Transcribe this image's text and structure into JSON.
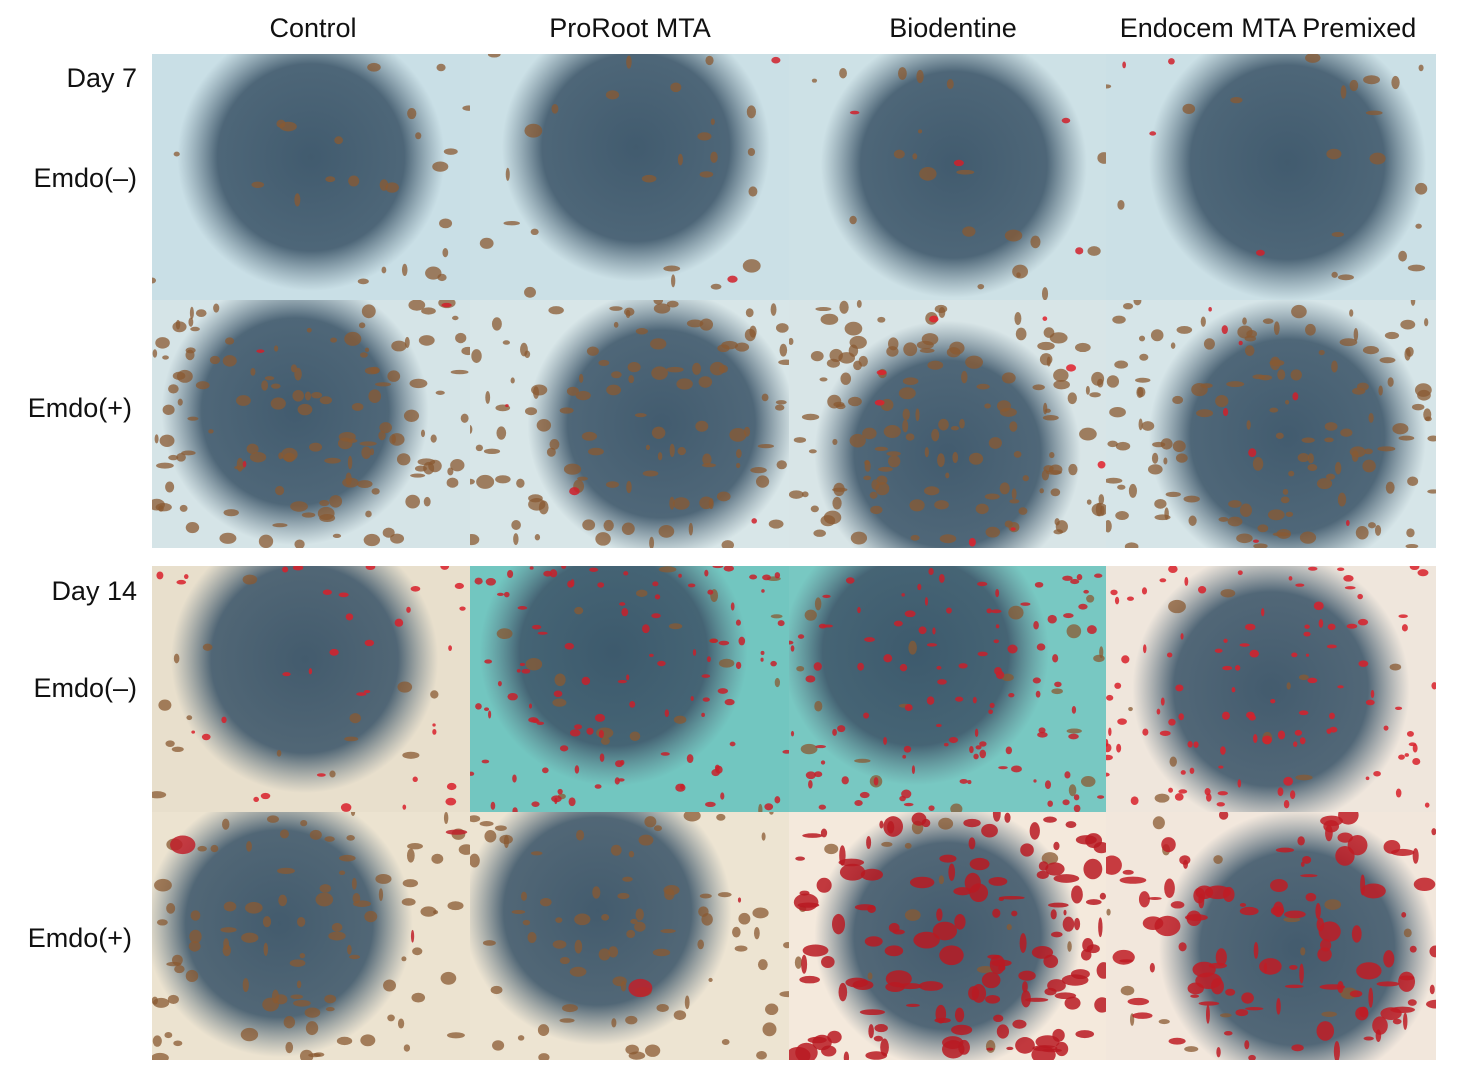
{
  "columns": [
    "Control",
    "ProRoot MTA",
    "Biodentine",
    "Endocem MTA Premixed"
  ],
  "groups": [
    {
      "day": "Day 7",
      "rows": [
        "Emdo(–)",
        "Emdo(+)"
      ]
    },
    {
      "day": "Day 14",
      "rows": [
        "Emdo(–)",
        "Emdo(+)"
      ]
    }
  ]
}
